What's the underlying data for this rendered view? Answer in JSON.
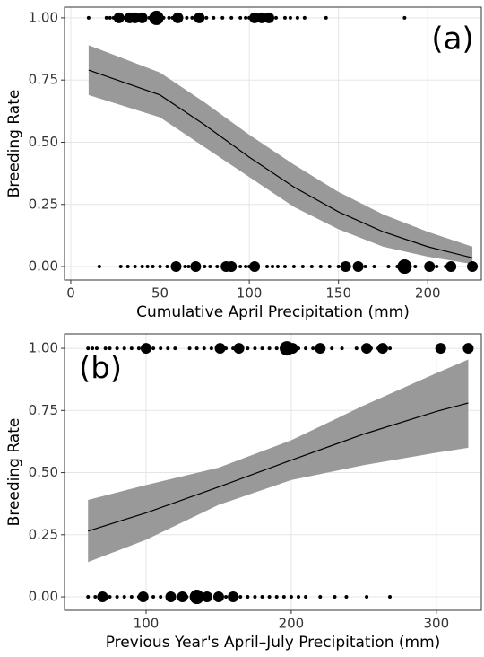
{
  "chart_data": [
    {
      "type": "scatter",
      "panel_label": "(a)",
      "x_label": "Cumulative April Precipitation (mm)",
      "y_label": "Breeding Rate",
      "xlim": [
        -3.5,
        230
      ],
      "ylim": [
        -0.054,
        1.043
      ],
      "xticks": [
        0,
        50,
        100,
        150,
        200
      ],
      "yticks": [
        {
          "value": 0,
          "label": "0.00"
        },
        {
          "value": 0.25,
          "label": "0.25"
        },
        {
          "value": 0.5,
          "label": "0.50"
        },
        {
          "value": 0.75,
          "label": "0.75"
        },
        {
          "value": 1,
          "label": "1.00"
        }
      ],
      "grid": true,
      "color": "#000000",
      "band_color": "#999999",
      "points": {
        "x": [
          10,
          20,
          22,
          24,
          26,
          27,
          30,
          32,
          33,
          35,
          36,
          40,
          42,
          44,
          48,
          52,
          55,
          57,
          60,
          62,
          65,
          68,
          72,
          76,
          80,
          85,
          90,
          95,
          98,
          100,
          103,
          107,
          111,
          115,
          120,
          123,
          127,
          131,
          143,
          187,
          16,
          28,
          32,
          36,
          40,
          43,
          46,
          50,
          54,
          58,
          59,
          64,
          66,
          70,
          75,
          78,
          82,
          87,
          90,
          95,
          98,
          100,
          103,
          110,
          113,
          116,
          120,
          125,
          130,
          135,
          140,
          145,
          150,
          154,
          161,
          165,
          170,
          178,
          183,
          187,
          193,
          201,
          205,
          210,
          213,
          215,
          225
        ],
        "y": [
          1,
          1,
          1,
          1,
          1,
          1,
          1,
          1,
          1,
          1,
          1,
          1,
          1,
          1,
          1,
          1,
          1,
          1,
          1,
          1,
          1,
          1,
          1,
          1,
          1,
          1,
          1,
          1,
          1,
          1,
          1,
          1,
          1,
          1,
          1,
          1,
          1,
          1,
          1,
          1,
          0,
          0,
          0,
          0,
          0,
          0,
          0,
          0,
          0,
          0,
          0,
          0,
          0,
          0,
          0,
          0,
          0,
          0,
          0,
          0,
          0,
          0,
          0,
          0,
          0,
          0,
          0,
          0,
          0,
          0,
          0,
          0,
          0,
          0,
          0,
          0,
          0,
          0,
          0,
          0,
          0,
          0,
          0,
          0,
          0,
          0,
          0
        ],
        "size": [
          1,
          1,
          1,
          1,
          1,
          3,
          1,
          1,
          3,
          1,
          3,
          3,
          1,
          1,
          4,
          1,
          1,
          1,
          3,
          1,
          1,
          1,
          3,
          1,
          1,
          1,
          1,
          1,
          1,
          1,
          3,
          3,
          3,
          1,
          1,
          1,
          1,
          1,
          1,
          1,
          1,
          1,
          1,
          1,
          1,
          1,
          1,
          1,
          1,
          1,
          3,
          1,
          1,
          3,
          1,
          1,
          1,
          3,
          3,
          1,
          1,
          1,
          3,
          1,
          1,
          1,
          1,
          1,
          1,
          1,
          1,
          1,
          1,
          3,
          3,
          1,
          1,
          1,
          1,
          4,
          1,
          3,
          1,
          1,
          3,
          1,
          3
        ]
      },
      "curve": {
        "x": [
          10,
          50,
          75,
          100,
          125,
          150,
          175,
          200,
          225
        ],
        "fit": [
          0.79,
          0.69,
          0.57,
          0.44,
          0.32,
          0.22,
          0.14,
          0.08,
          0.035
        ],
        "lower": [
          0.69,
          0.6,
          0.48,
          0.36,
          0.24,
          0.15,
          0.08,
          0.04,
          0.01
        ],
        "upper": [
          0.89,
          0.78,
          0.66,
          0.53,
          0.41,
          0.3,
          0.21,
          0.14,
          0.08
        ]
      }
    },
    {
      "type": "scatter",
      "panel_label": "(b)",
      "x_label": "Previous Year's April–July Precipitation (mm)",
      "y_label": "Breeding Rate",
      "xlim": [
        43.8,
        331
      ],
      "ylim": [
        -0.054,
        1.058
      ],
      "xticks": [
        100,
        200,
        300
      ],
      "yticks": [
        {
          "value": 0,
          "label": "0.00"
        },
        {
          "value": 0.25,
          "label": "0.25"
        },
        {
          "value": 0.5,
          "label": "0.50"
        },
        {
          "value": 0.75,
          "label": "0.75"
        },
        {
          "value": 1,
          "label": "1.00"
        }
      ],
      "grid": true,
      "color": "#000000",
      "band_color": "#999999",
      "points": {
        "x": [
          60,
          63,
          66,
          72,
          75,
          80,
          85,
          90,
          95,
          100,
          105,
          110,
          115,
          120,
          130,
          135,
          140,
          145,
          151,
          155,
          160,
          164,
          170,
          175,
          180,
          185,
          190,
          197,
          201,
          205,
          210,
          215,
          220,
          228,
          235,
          245,
          252,
          255,
          260,
          263,
          268,
          303,
          322,
          60,
          65,
          70,
          75,
          80,
          85,
          90,
          95,
          98,
          105,
          110,
          115,
          117,
          125,
          128,
          132,
          135,
          138,
          142,
          150,
          155,
          160,
          165,
          170,
          175,
          180,
          185,
          190,
          195,
          200,
          205,
          210,
          220,
          230,
          238,
          252,
          268
        ],
        "y": [
          1,
          1,
          1,
          1,
          1,
          1,
          1,
          1,
          1,
          1,
          1,
          1,
          1,
          1,
          1,
          1,
          1,
          1,
          1,
          1,
          1,
          1,
          1,
          1,
          1,
          1,
          1,
          1,
          1,
          1,
          1,
          1,
          1,
          1,
          1,
          1,
          1,
          1,
          1,
          1,
          1,
          1,
          1,
          0,
          0,
          0,
          0,
          0,
          0,
          0,
          0,
          0,
          0,
          0,
          0,
          0,
          0,
          0,
          0,
          0,
          0,
          0,
          0,
          0,
          0,
          0,
          0,
          0,
          0,
          0,
          0,
          0,
          0,
          0,
          0,
          0,
          0,
          0,
          0,
          0
        ],
        "size": [
          1,
          1,
          1,
          1,
          1,
          1,
          1,
          1,
          1,
          3,
          1,
          1,
          1,
          1,
          1,
          1,
          1,
          1,
          3,
          1,
          1,
          3,
          1,
          1,
          1,
          1,
          1,
          4,
          3,
          1,
          1,
          1,
          3,
          1,
          1,
          1,
          3,
          1,
          1,
          3,
          1,
          3,
          3,
          1,
          1,
          3,
          1,
          1,
          1,
          1,
          1,
          3,
          1,
          1,
          1,
          3,
          3,
          1,
          1,
          4,
          1,
          3,
          3,
          1,
          3,
          1,
          1,
          1,
          1,
          1,
          1,
          1,
          1,
          1,
          1,
          1,
          1,
          1,
          1,
          1
        ]
      },
      "curve": {
        "x": [
          60,
          100,
          150,
          200,
          250,
          300,
          322
        ],
        "fit": [
          0.265,
          0.338,
          0.442,
          0.55,
          0.655,
          0.746,
          0.78
        ],
        "lower": [
          0.14,
          0.23,
          0.37,
          0.47,
          0.53,
          0.58,
          0.6
        ],
        "upper": [
          0.39,
          0.45,
          0.52,
          0.63,
          0.77,
          0.9,
          0.955
        ]
      }
    }
  ]
}
